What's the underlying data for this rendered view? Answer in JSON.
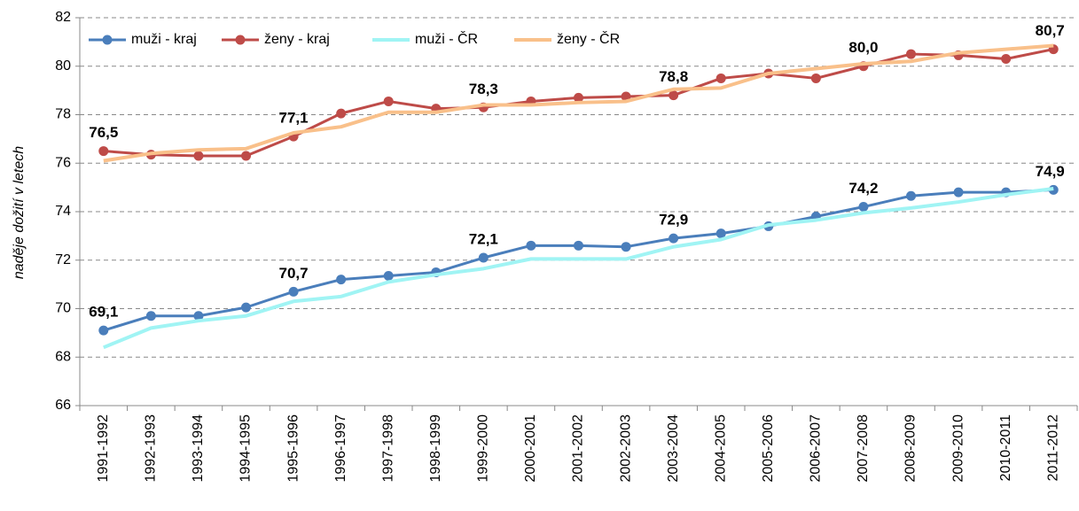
{
  "chart_data": {
    "type": "line",
    "y_label": "naděje dožití v letech",
    "categories": [
      "1991-1992",
      "1992-1993",
      "1993-1994",
      "1994-1995",
      "1995-1996",
      "1996-1997",
      "1997-1998",
      "1998-1999",
      "1999-2000",
      "2000-2001",
      "2001-2002",
      "2002-2003",
      "2003-2004",
      "2004-2005",
      "2005-2006",
      "2006-2007",
      "2007-2008",
      "2008-2009",
      "2009-2010",
      "2010-2011",
      "2011-2012"
    ],
    "series": [
      {
        "name": "muži - kraj",
        "color": "#4a7ebb",
        "label_color": "#3f6a9a",
        "marker": true,
        "values": [
          69.1,
          69.7,
          69.7,
          70.05,
          70.7,
          71.2,
          71.35,
          71.5,
          72.1,
          72.6,
          72.6,
          72.55,
          72.9,
          73.1,
          73.4,
          73.8,
          74.2,
          74.65,
          74.8,
          74.8,
          74.9
        ],
        "value_labels": [
          "69,1",
          null,
          null,
          null,
          "70,7",
          null,
          null,
          null,
          "72,1",
          null,
          null,
          null,
          "72,9",
          null,
          null,
          null,
          "74,2",
          null,
          null,
          null,
          "74,9"
        ]
      },
      {
        "name": "ženy - kraj",
        "color": "#be4b48",
        "label_color": "#b01c1c",
        "marker": true,
        "values": [
          76.5,
          76.35,
          76.3,
          76.3,
          77.1,
          78.05,
          78.55,
          78.25,
          78.3,
          78.55,
          78.7,
          78.75,
          78.8,
          79.5,
          79.7,
          79.5,
          80.0,
          80.5,
          80.45,
          80.3,
          80.7
        ],
        "value_labels": [
          "76,5",
          null,
          null,
          null,
          "77,1",
          null,
          null,
          null,
          "78,3",
          null,
          null,
          null,
          "78,8",
          null,
          null,
          null,
          "80,0",
          null,
          null,
          null,
          "80,7"
        ]
      },
      {
        "name": "muži - ČR",
        "color": "#a0f4f4",
        "marker": false,
        "values": [
          68.4,
          69.2,
          69.5,
          69.7,
          70.3,
          70.5,
          71.1,
          71.4,
          71.65,
          72.05,
          72.05,
          72.05,
          72.55,
          72.85,
          73.45,
          73.65,
          73.95,
          74.15,
          74.4,
          74.7,
          74.95
        ]
      },
      {
        "name": "ženy - ČR",
        "color": "#f9c08a",
        "marker": false,
        "values": [
          76.1,
          76.4,
          76.55,
          76.6,
          77.25,
          77.5,
          78.1,
          78.1,
          78.4,
          78.4,
          78.5,
          78.55,
          79.05,
          79.1,
          79.7,
          79.9,
          80.1,
          80.2,
          80.55,
          80.7,
          80.85
        ]
      }
    ],
    "ylim": [
      66,
      82
    ],
    "yticks": [
      66,
      68,
      70,
      72,
      74,
      76,
      78,
      80,
      82
    ],
    "grid": true,
    "legend": "top-left"
  }
}
